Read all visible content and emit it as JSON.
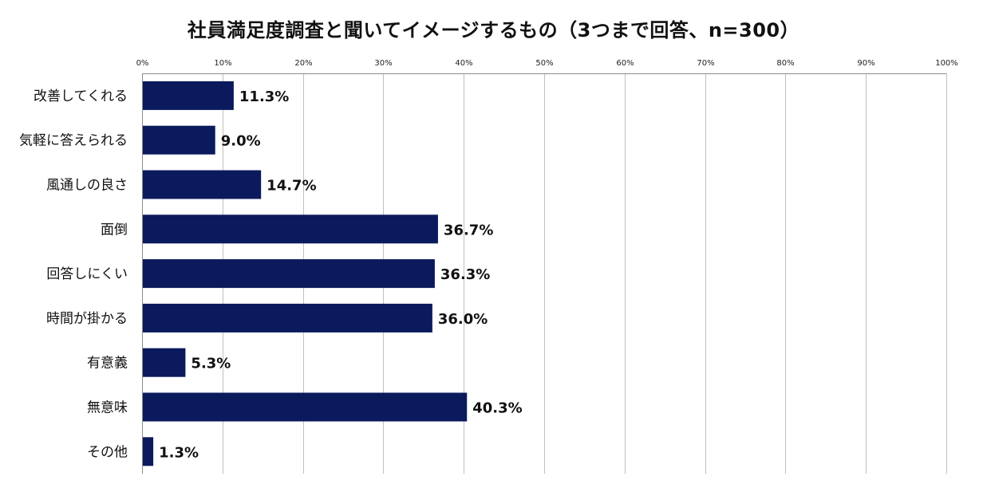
{
  "chart_data": {
    "type": "bar",
    "orientation": "horizontal",
    "title": "社員満足度調査と聞いてイメージするもの（3つまで回答、n=300）",
    "categories": [
      "改善してくれる",
      "気軽に答えられる",
      "風通しの良さ",
      "面倒",
      "回答しにくい",
      "時間が掛かる",
      "有意義",
      "無意味",
      "その他"
    ],
    "values": [
      11.3,
      9.0,
      14.7,
      36.7,
      36.3,
      36.0,
      5.3,
      40.3,
      1.3
    ],
    "value_labels": [
      "11.3%",
      "9.0%",
      "14.7%",
      "36.7%",
      "36.3%",
      "36.0%",
      "5.3%",
      "40.3%",
      "1.3%"
    ],
    "xlim": [
      0,
      100
    ],
    "x_ticks": [
      0,
      10,
      20,
      30,
      40,
      50,
      60,
      70,
      80,
      90,
      100
    ],
    "x_tick_labels": [
      "0%",
      "10%",
      "20%",
      "30%",
      "40%",
      "50%",
      "60%",
      "70%",
      "80%",
      "90%",
      "100%"
    ],
    "xaxis_position": "top",
    "grid": true,
    "legend": false,
    "bar_color": "#0b1a5c",
    "grid_color": "#c0c0c0",
    "axis_color": "#8c8c8c"
  }
}
